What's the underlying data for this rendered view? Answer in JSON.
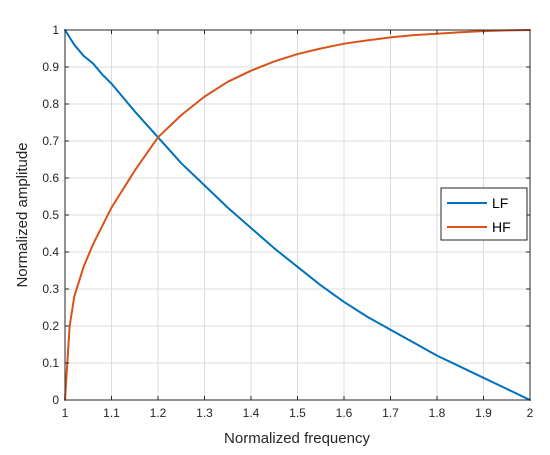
{
  "chart_data": {
    "type": "line",
    "xlabel": "Normalized frequency",
    "ylabel": "Normalized amplitude",
    "xlim": [
      1,
      2
    ],
    "ylim": [
      0,
      1
    ],
    "xticks": [
      1,
      1.1,
      1.2,
      1.3,
      1.4,
      1.5,
      1.6,
      1.7,
      1.8,
      1.9,
      2
    ],
    "xtick_labels": [
      "1",
      "1.1",
      "1.2",
      "1.3",
      "1.4",
      "1.5",
      "1.6",
      "1.7",
      "1.8",
      "1.9",
      "2"
    ],
    "yticks": [
      0,
      0.1,
      0.2,
      0.3,
      0.4,
      0.5,
      0.6,
      0.7,
      0.8,
      0.9,
      1
    ],
    "ytick_labels": [
      "0",
      "0.1",
      "0.2",
      "0.3",
      "0.4",
      "0.5",
      "0.6",
      "0.7",
      "0.8",
      "0.9",
      "1"
    ],
    "grid": true,
    "legend_position": "right",
    "x": [
      1,
      1.01,
      1.02,
      1.04,
      1.06,
      1.08,
      1.1,
      1.15,
      1.2,
      1.25,
      1.3,
      1.35,
      1.4,
      1.45,
      1.5,
      1.55,
      1.6,
      1.65,
      1.7,
      1.75,
      1.8,
      1.85,
      1.9,
      1.95,
      2
    ],
    "series": [
      {
        "name": "LF",
        "color": "#0072BD",
        "values": [
          1,
          0.98,
          0.96,
          0.93,
          0.91,
          0.88,
          0.855,
          0.78,
          0.71,
          0.64,
          0.58,
          0.52,
          0.465,
          0.41,
          0.36,
          0.31,
          0.265,
          0.225,
          0.19,
          0.155,
          0.12,
          0.09,
          0.06,
          0.03,
          0
        ]
      },
      {
        "name": "HF",
        "color": "#D95319",
        "values": [
          0,
          0.2,
          0.28,
          0.36,
          0.42,
          0.47,
          0.52,
          0.62,
          0.71,
          0.77,
          0.82,
          0.86,
          0.89,
          0.915,
          0.935,
          0.95,
          0.963,
          0.972,
          0.98,
          0.986,
          0.99,
          0.994,
          0.997,
          0.999,
          1
        ]
      }
    ]
  }
}
